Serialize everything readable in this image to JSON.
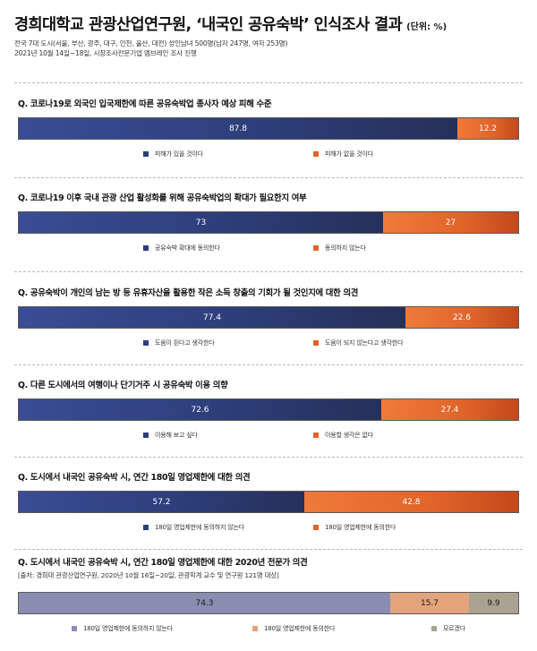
{
  "header": {
    "title": "경희대학교 관광산업연구원, ‘내국인 공유숙박’ 인식조사 결과",
    "unit": "(단위: %)",
    "meta_line1": "전국 7대 도시(서울, 부산, 광주, 대구, 인천, 울산, 대전) 성인남녀 500명(남자 247명, 여자 253명)",
    "meta_line2": "2021년 10월 14일~18일, 시장조사전문기업 엠브레인 조사 진행"
  },
  "colors": {
    "navy": "#2d3e7a",
    "orange": "#e0642a",
    "lavender": "#8a8cb0",
    "peach": "#e3a47c",
    "taupe": "#aaa392"
  },
  "chart_data": [
    {
      "type": "bar",
      "stacked": true,
      "orientation": "horizontal",
      "title": "Q. 코로나19로 외국인 입국제한에 따른 공유숙박업 종사자 예상 피해 수준",
      "series": [
        {
          "name": "피해가 있을 것이다",
          "value": 87.8,
          "label": "87.8",
          "color": "#2d3e7a"
        },
        {
          "name": "피해가 없을 것이다",
          "value": 12.2,
          "label": "12.2",
          "color": "#e0642a"
        }
      ]
    },
    {
      "type": "bar",
      "stacked": true,
      "orientation": "horizontal",
      "title": "Q. 코로나19 이후 국내 관광 산업 활성화를 위해 공유숙박업의 확대가 필요한지 여부",
      "series": [
        {
          "name": "공유숙박 확대에 동의한다",
          "value": 73,
          "label": "73",
          "color": "#2d3e7a"
        },
        {
          "name": "동의하지 않는다",
          "value": 27,
          "label": "27",
          "color": "#e0642a"
        }
      ]
    },
    {
      "type": "bar",
      "stacked": true,
      "orientation": "horizontal",
      "title": "Q. 공유숙박이 개인의 남는 방 등 유휴자산을 활용한 작은 소득 창출의 기회가 될 것인지에 대한 의견",
      "series": [
        {
          "name": "도움이 된다고 생각한다",
          "value": 77.4,
          "label": "77.4",
          "color": "#2d3e7a"
        },
        {
          "name": "도움이 되지 않는다고 생각한다",
          "value": 22.6,
          "label": "22.6",
          "color": "#e0642a"
        }
      ]
    },
    {
      "type": "bar",
      "stacked": true,
      "orientation": "horizontal",
      "title": "Q. 다른 도시에서의 여행이나 단기거주 시 공유숙박 이용 의향",
      "series": [
        {
          "name": "이용해 보고 싶다",
          "value": 72.6,
          "label": "72.6",
          "color": "#2d3e7a"
        },
        {
          "name": "이용할 생각은 없다",
          "value": 27.4,
          "label": "27.4",
          "color": "#e0642a"
        }
      ]
    },
    {
      "type": "bar",
      "stacked": true,
      "orientation": "horizontal",
      "title": "Q. 도시에서 내국인 공유숙박 시, 연간 180일 영업제한에 대한 의견",
      "series": [
        {
          "name": "180일 영업제한에 동의하지 않는다",
          "value": 57.2,
          "label": "57.2",
          "color": "#2d3e7a"
        },
        {
          "name": "180일 영업제한에 동의한다",
          "value": 42.8,
          "label": "42.8",
          "color": "#e0642a"
        }
      ]
    },
    {
      "type": "bar",
      "stacked": true,
      "orientation": "horizontal",
      "title": "Q. 도시에서 내국인 공유숙박 시, 연간 180일 영업제한에 대한 2020년 전문가 의견",
      "source": "[출처: 경희대 관광산업연구원, 2020년 10월 16일~20일, 관광학계 교수 및 연구원 121명 대상]",
      "series": [
        {
          "name": "180일 영업제한에 동의하지 않는다",
          "value": 74.3,
          "label": "74.3",
          "color": "#8a8cb0"
        },
        {
          "name": "180일 영업제한에 동의한다",
          "value": 15.7,
          "label": "15.7",
          "color": "#e3a47c"
        },
        {
          "name": "모르겠다",
          "value": 9.9,
          "label": "9.9",
          "color": "#aaa392"
        }
      ]
    }
  ]
}
